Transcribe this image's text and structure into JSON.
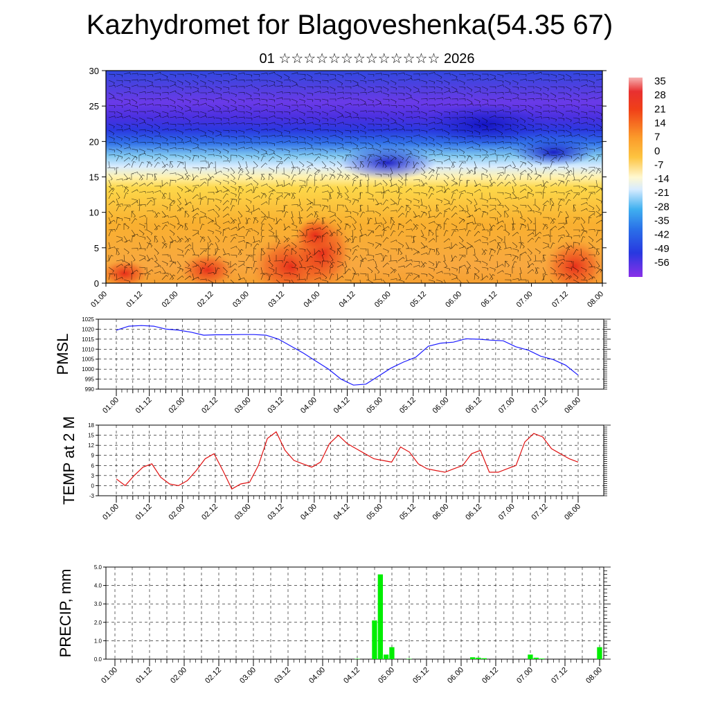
{
  "title": "Kazhydromet for Blagoveshenka(54.35 67)",
  "subtitle": "01 ☆☆☆☆☆☆☆☆☆☆☆☆☆ 2026",
  "time_labels": [
    "01.00",
    "01.12",
    "02.00",
    "02.12",
    "03.00",
    "03.12",
    "04.00",
    "04.12",
    "05.00",
    "05.12",
    "06.00",
    "06.12",
    "07.00",
    "07.12",
    "08.00"
  ],
  "chart_data": [
    {
      "type": "heatmap",
      "name": "temperature-wind-cross-section",
      "ylim": [
        0,
        30
      ],
      "yticks": [
        0,
        5,
        10,
        15,
        20,
        25,
        30
      ],
      "colorbar": {
        "labels": [
          "35",
          "28",
          "21",
          "14",
          "7",
          "0",
          "-7",
          "-14",
          "-21",
          "-28",
          "-35",
          "-42",
          "-49",
          "-56"
        ],
        "colors": [
          "#f6b0b0",
          "#e02020",
          "#f04018",
          "#f86820",
          "#fb9a2a",
          "#fdc440",
          "#fff0a0",
          "#e0f0ff",
          "#58c8f0",
          "#2a8ee8",
          "#3060e8",
          "#2838e0",
          "#3030d8",
          "#8a30e8"
        ]
      }
    },
    {
      "type": "line",
      "name": "PMSL",
      "ylabel": "PMSL",
      "ylim": [
        990,
        1025
      ],
      "yticks": [
        990,
        995,
        1000,
        1005,
        1010,
        1015,
        1020,
        1025
      ],
      "color": "#1a1aff",
      "values": [
        1019.5,
        1021.5,
        1021.8,
        1021.5,
        1020,
        1019.5,
        1018.5,
        1017,
        1017.2,
        1017.2,
        1017.3,
        1017.3,
        1017,
        1015,
        1011.5,
        1008,
        1004,
        1000,
        995,
        992,
        992.5,
        996.5,
        1000.5,
        1003.5,
        1006,
        1011.5,
        1013,
        1013.5,
        1015.2,
        1015,
        1014.5,
        1014.2,
        1011.2,
        1009.5,
        1006.5,
        1004.8,
        1002,
        997
      ]
    },
    {
      "type": "line",
      "name": "TEMP at 2 M",
      "ylabel": "TEMP at 2 M",
      "ylim": [
        -3,
        18
      ],
      "yticks": [
        -3,
        0,
        3,
        6,
        9,
        12,
        15,
        18
      ],
      "color": "#e01010",
      "values": [
        2,
        0,
        3,
        5.5,
        6.5,
        2.5,
        0.5,
        0,
        1.5,
        4.5,
        8,
        9.5,
        4.5,
        -1,
        0.5,
        1,
        6,
        14,
        16,
        10.5,
        7.5,
        6.5,
        5.5,
        7,
        12.5,
        15,
        12.5,
        11,
        9.5,
        8,
        7.5,
        7,
        11.5,
        10,
        6.5,
        5,
        4.5,
        4,
        5,
        6,
        9.5,
        10.5,
        4,
        4,
        5,
        6,
        13,
        15.5,
        14.5,
        11,
        9.5,
        8,
        7
      ]
    },
    {
      "type": "bar",
      "name": "PRECIP, mm",
      "ylabel": "PRECIP, mm",
      "ylim": [
        0,
        5
      ],
      "ytick_labels": [
        "0.0",
        "1.0",
        "2.0",
        "3.0",
        "4.0",
        "5.0"
      ],
      "color": "#00ee00",
      "values": [
        0,
        0,
        0,
        0,
        0,
        0,
        0,
        0,
        0,
        0,
        0,
        0,
        0,
        0,
        0,
        0,
        0,
        0,
        0,
        0,
        0,
        0,
        0,
        0,
        0,
        0,
        0,
        0,
        0,
        0,
        0,
        0,
        0,
        0,
        0,
        0,
        0,
        0,
        0,
        0,
        0,
        0,
        0.02,
        0,
        0,
        2.1,
        4.6,
        0.25,
        0.65,
        0,
        0,
        0.02,
        0,
        0,
        0,
        0,
        0,
        0,
        0,
        0,
        0,
        0,
        0.1,
        0.08,
        0.05,
        0,
        0,
        0,
        0,
        0,
        0,
        0,
        0.25,
        0.08,
        0.03,
        0,
        0,
        0,
        0,
        0,
        0,
        0,
        0,
        0,
        0.65
      ]
    }
  ]
}
